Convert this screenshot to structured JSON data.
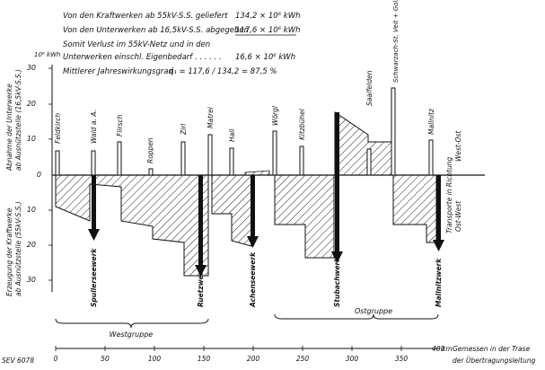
{
  "header": {
    "line1_label": "Von den Kraftwerken ab 55kV-S.S. geliefert",
    "line1_value": "134,2 × 10⁶ kWh",
    "line2_label": "Von den Unterwerken ab 16,5kV-S.S. abgegeben",
    "line2_value": "117,6 × 10⁶ kWh",
    "line3a": "Somit Verlust im 55kV-Netz und in den",
    "line3b": "Unterwerken einschl. Eigenbedarf . . . . . .",
    "line3_value": "16,6 × 10⁶ kWh",
    "line4_label": "Mittlerer Jahreswirkungsgrad",
    "line4_formula": "η₁ = 117,6 / 134,2 = 87,5 %"
  },
  "axis_left": {
    "unit": "10⁶ kWh",
    "upper_label_a": "Abnahme der Unterwerke",
    "upper_label_b": "ab Ausnützstelle (16,5kV-S.S.)",
    "lower_label_a": "Erzeugung der Kraftwerke",
    "lower_label_b": "ab Ausnützstelle (55kV-S.S.)",
    "ticks_up": [
      "30",
      "20",
      "10"
    ],
    "tick_zero": "0",
    "ticks_down": [
      "10",
      "20",
      "30"
    ]
  },
  "axis_right": {
    "label_a": "Transporte in Richtung",
    "label_east": "West-Ost",
    "label_west": "Ost-West"
  },
  "substations": [
    {
      "name": "Feldkirch",
      "km": 0
    },
    {
      "name": "Wald a. A.",
      "km": 27
    },
    {
      "name": "Flirsch",
      "km": 47
    },
    {
      "name": "Roppen",
      "km": 70
    },
    {
      "name": "Zirl",
      "km": 98
    },
    {
      "name": "Matrei",
      "km": 123
    },
    {
      "name": "Hall",
      "km": 148
    },
    {
      "name": "Wörgl",
      "km": 183
    },
    {
      "name": "Kitzbühel",
      "km": 207
    },
    {
      "name": "Saalfelden",
      "km": 262
    },
    {
      "name": "Schwarzach-St. Veit + Golling",
      "km": 290
    },
    {
      "name": "Mallnitz",
      "km": 333
    }
  ],
  "power_plants": [
    {
      "name": "Spullerseewerk",
      "km": 28
    },
    {
      "name": "Ruetzwerk",
      "km": 123
    },
    {
      "name": "Achenseewerk",
      "km": 170
    },
    {
      "name": "Stubachwerk",
      "km": 250
    },
    {
      "name": "Mallnitzwerk",
      "km": 344
    }
  ],
  "groups": {
    "west": "Westgruppe",
    "east": "Ostgruppe"
  },
  "x_axis": {
    "ticks": [
      "0",
      "50",
      "100",
      "150",
      "200",
      "250",
      "300",
      "350",
      "400",
      "km"
    ],
    "label_a": "Gemessen in der Trase",
    "label_b": "der Übertragungsleitung"
  },
  "footer_code": "SEV 6078"
}
